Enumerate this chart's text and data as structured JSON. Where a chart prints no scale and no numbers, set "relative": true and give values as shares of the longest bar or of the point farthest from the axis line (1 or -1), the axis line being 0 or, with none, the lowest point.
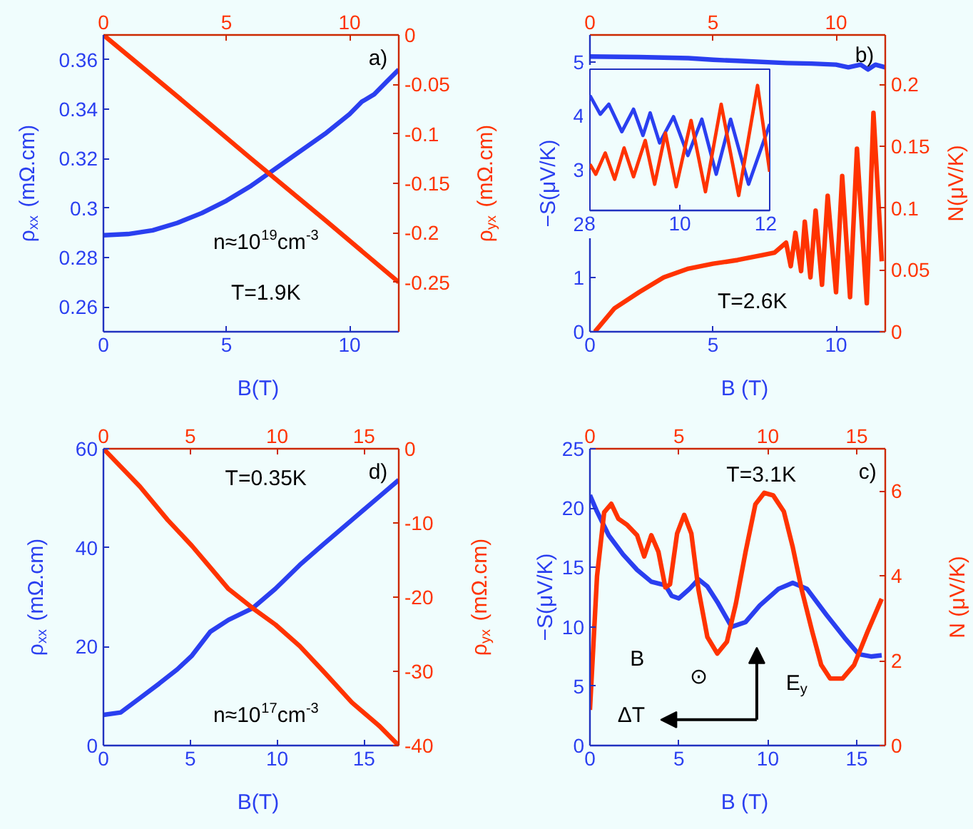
{
  "chart_data": [
    {
      "type": "line",
      "xlabel": "B(T)",
      "ylabel": "ρ$_{xx}$ (mΩ.cm)",
      "y2label": "ρ$_{yx}$ (mΩ.cm)",
      "xlim": [
        0,
        12
      ],
      "xticks": [
        0,
        5,
        10
      ],
      "x2lim": [
        0,
        12
      ],
      "x2ticks": [
        0,
        5,
        10
      ],
      "ylim": [
        0.25,
        0.37
      ],
      "yticks": [
        0.26,
        0.28,
        0.3,
        0.32,
        0.34,
        0.36
      ],
      "y2lim": [
        -0.3,
        0
      ],
      "y2ticks": [
        -0.25,
        -0.2,
        -0.15,
        -0.1,
        -0.05,
        0
      ],
      "annotations": [
        "a)",
        "n≈10$^{19}$cm$^{-3}$",
        "T=1.9K"
      ],
      "series": [
        {
          "color": "#2a3ff0",
          "axis": "y",
          "x": [
            0,
            1,
            2,
            3,
            4,
            5,
            6,
            7,
            8,
            9,
            10,
            10.5,
            11,
            11.5,
            12
          ],
          "values": [
            0.289,
            0.2895,
            0.291,
            0.294,
            0.298,
            0.303,
            0.309,
            0.316,
            0.323,
            0.33,
            0.338,
            0.343,
            0.346,
            0.351,
            0.356
          ]
        },
        {
          "color": "#ff3300",
          "axis": "y2",
          "x": [
            0,
            3,
            6,
            9,
            12
          ],
          "values": [
            0,
            -0.062,
            -0.125,
            -0.187,
            -0.25
          ]
        }
      ]
    },
    {
      "type": "line",
      "xlabel": "B (T)",
      "ylabel": "−S(μV/K)",
      "y2label": "N(μV/K)",
      "xlim": [
        0,
        12
      ],
      "xticks": [
        0,
        5,
        10
      ],
      "x2lim": [
        0,
        12
      ],
      "x2ticks": [
        0,
        5,
        10
      ],
      "ylim": [
        0,
        5.5
      ],
      "yticks": [
        0,
        1,
        2,
        3,
        4,
        5
      ],
      "y2lim": [
        0,
        0.24
      ],
      "y2ticks": [
        0,
        0.05,
        0.1,
        0.15,
        0.2
      ],
      "annotations": [
        "b)",
        "T=2.6K"
      ],
      "series": [
        {
          "color": "#2a3ff0",
          "axis": "y",
          "x": [
            0,
            2,
            4,
            5,
            6,
            8,
            9,
            10,
            10.5,
            11,
            11.3,
            11.6,
            12
          ],
          "values": [
            5.1,
            5.09,
            5.07,
            5.04,
            5.02,
            4.98,
            4.97,
            4.95,
            4.9,
            4.95,
            4.86,
            4.95,
            4.9
          ]
        },
        {
          "color": "#ff3300",
          "axis": "y2",
          "x": [
            0.2,
            1,
            2,
            3,
            4,
            5,
            6,
            7,
            7.5,
            7.97,
            8.16,
            8.35,
            8.58,
            8.73,
            8.96,
            9.17,
            9.43,
            9.66,
            10.0,
            10.25,
            10.57,
            10.85,
            11.25,
            11.52,
            11.86
          ],
          "values": [
            0,
            0.019,
            0.032,
            0.044,
            0.051,
            0.055,
            0.058,
            0.062,
            0.064,
            0.072,
            0.053,
            0.08,
            0.049,
            0.089,
            0.044,
            0.098,
            0.038,
            0.11,
            0.032,
            0.126,
            0.028,
            0.148,
            0.023,
            0.177,
            0.057
          ]
        }
      ]
    },
    {
      "type": "line",
      "relative": true,
      "tick_labels": "x",
      "xlim": [
        8,
        12
      ],
      "xticks": [
        8,
        10,
        12
      ],
      "series": [
        {
          "color": "#2a3ff0",
          "x": [
            8.0,
            8.23,
            8.42,
            8.71,
            8.97,
            9.18,
            9.34,
            9.55,
            9.86,
            10.18,
            10.49,
            10.81,
            11.13,
            11.53,
            12.0
          ],
          "values": [
            0.92,
            0.77,
            0.85,
            0.63,
            0.81,
            0.6,
            0.78,
            0.54,
            0.75,
            0.44,
            0.73,
            0.29,
            0.73,
            0.21,
            0.69
          ]
        },
        {
          "color": "#ff3300",
          "x": [
            8.0,
            8.13,
            8.34,
            8.55,
            8.76,
            8.97,
            9.23,
            9.44,
            9.68,
            9.92,
            10.25,
            10.57,
            10.92,
            11.31,
            11.73,
            12.0
          ],
          "values": [
            0.37,
            0.29,
            0.46,
            0.25,
            0.5,
            0.27,
            0.56,
            0.21,
            0.62,
            0.19,
            0.72,
            0.15,
            0.85,
            0.12,
            1.0,
            0.31
          ]
        }
      ]
    },
    {
      "type": "line",
      "xlabel": "B(T)",
      "ylabel": "ρ$_{xx}$ (mΩ.cm)",
      "y2label": "ρ$_{yx}$ (mΩ.cm)",
      "xlim": [
        0,
        17
      ],
      "xticks": [
        0,
        5,
        10,
        15
      ],
      "x2lim": [
        0,
        17
      ],
      "x2ticks": [
        0,
        5,
        10,
        15
      ],
      "ylim": [
        0,
        60
      ],
      "yticks": [
        0,
        20,
        40,
        60
      ],
      "y2lim": [
        -40,
        0
      ],
      "y2ticks": [
        -40,
        -30,
        -20,
        -10,
        0
      ],
      "annotations": [
        "T=0.35K",
        "d)",
        "n≈10$^{17}$cm$^{-3}$"
      ],
      "series": [
        {
          "color": "#2a3ff0",
          "axis": "y",
          "x": [
            0,
            1,
            2.1,
            3.2,
            4.25,
            5.1,
            6.15,
            7.2,
            8.6,
            9.9,
            11.3,
            12.7,
            14.3,
            15.9,
            17
          ],
          "values": [
            6.2,
            6.7,
            9.6,
            12.5,
            15.4,
            18.2,
            23,
            25.4,
            27.8,
            31.7,
            36.5,
            40.8,
            45.6,
            50.4,
            53.7
          ]
        },
        {
          "color": "#ff3300",
          "axis": "y2",
          "x": [
            0,
            2.1,
            3.7,
            5.1,
            6.15,
            7.2,
            8.6,
            9.9,
            11.3,
            12.7,
            14.3,
            15.9,
            17
          ],
          "values": [
            0,
            -5.1,
            -9.6,
            -13.1,
            -16,
            -18.9,
            -21.5,
            -23.7,
            -26.6,
            -30.1,
            -34.2,
            -37.4,
            -40
          ]
        }
      ]
    },
    {
      "type": "line",
      "xlabel": "B (T)",
      "ylabel": "−S(μV/K)",
      "y2label": "N (μV/K)",
      "xlim": [
        0,
        16.6
      ],
      "xticks": [
        0,
        5,
        10,
        15
      ],
      "x2lim": [
        0,
        16.6
      ],
      "x2ticks": [
        0,
        5,
        10,
        15
      ],
      "ylim": [
        0,
        25
      ],
      "yticks": [
        0,
        5,
        10,
        15,
        20,
        25
      ],
      "y2lim": [
        0,
        7
      ],
      "y2ticks": [
        0,
        2,
        4,
        6
      ],
      "annotations": [
        "T=3.1K",
        "c)",
        "B",
        "⊙",
        "E$_{y}$",
        "ΔT"
      ],
      "series": [
        {
          "color": "#2a3ff0",
          "axis": "y",
          "x": [
            0,
            0.4,
            1.06,
            1.86,
            2.65,
            3.45,
            4.24,
            4.6,
            5.0,
            5.6,
            6.1,
            6.6,
            7.2,
            7.96,
            8.75,
            9.55,
            10.6,
            11.4,
            12.2,
            13.3,
            14.3,
            15.1,
            15.8,
            16.4
          ],
          "values": [
            21.1,
            19.7,
            17.7,
            16.1,
            14.8,
            13.8,
            13.5,
            12.6,
            12.4,
            13.2,
            14.0,
            13.4,
            12.0,
            10.0,
            10.4,
            11.8,
            13.2,
            13.7,
            13.2,
            11.0,
            9.1,
            7.7,
            7.5,
            7.6
          ]
        },
        {
          "color": "#ff3300",
          "axis": "y2",
          "x": [
            0,
            0.4,
            0.8,
            1.2,
            1.6,
            2.1,
            2.65,
            3.05,
            3.45,
            3.85,
            4.24,
            4.5,
            4.9,
            5.3,
            5.7,
            6.1,
            6.6,
            7.16,
            7.7,
            8.2,
            8.75,
            9.3,
            9.8,
            10.3,
            10.9,
            11.4,
            11.9,
            12.5,
            13.0,
            13.5,
            14.2,
            14.85,
            15.6,
            16.4
          ],
          "values": [
            0.84,
            4.0,
            5.5,
            5.7,
            5.35,
            5.2,
            4.96,
            4.46,
            4.96,
            4.57,
            3.73,
            3.8,
            5.0,
            5.44,
            5.0,
            3.68,
            2.56,
            2.17,
            2.45,
            3.34,
            4.57,
            5.69,
            5.96,
            5.9,
            5.52,
            4.68,
            3.68,
            2.68,
            1.9,
            1.58,
            1.58,
            1.9,
            2.68,
            3.46
          ]
        }
      ]
    }
  ]
}
